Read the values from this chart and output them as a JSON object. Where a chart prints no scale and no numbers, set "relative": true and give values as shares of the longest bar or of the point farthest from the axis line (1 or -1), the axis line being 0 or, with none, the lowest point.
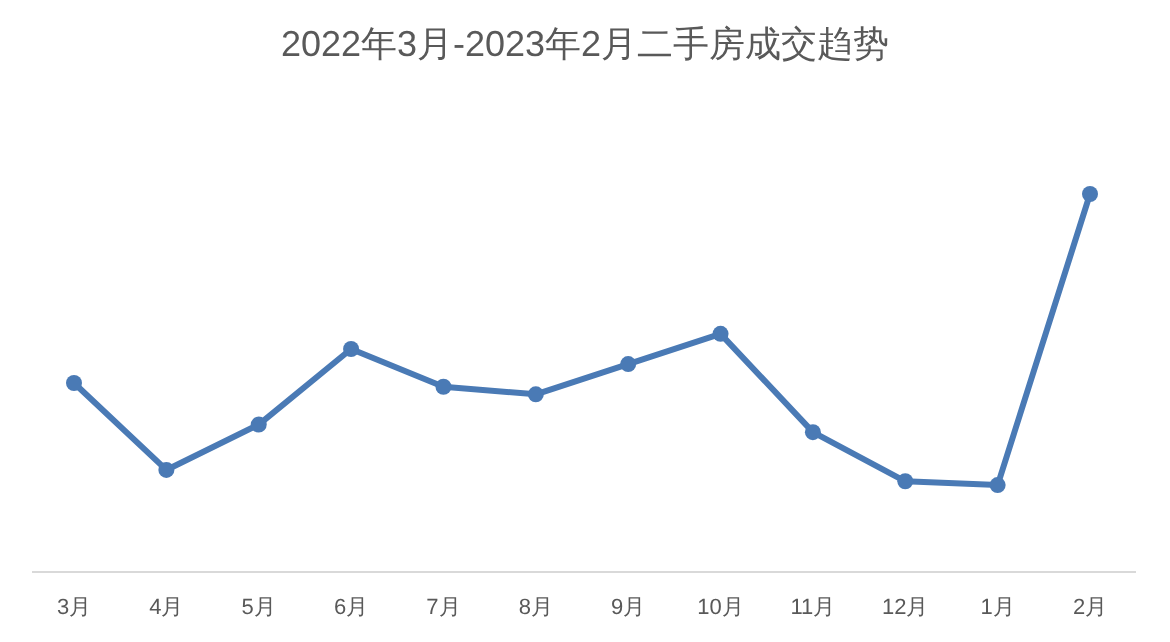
{
  "chart_data": {
    "type": "line",
    "title": "2022年3月-2023年2月二手房成交趋势",
    "relative": true,
    "categories": [
      "3月",
      "4月",
      "5月",
      "6月",
      "7月",
      "8月",
      "9月",
      "10月",
      "11月",
      "12月",
      "1月",
      "2月"
    ],
    "series": [
      {
        "color": "#4a7ab5",
        "values": [
          0.5,
          0.27,
          0.39,
          0.59,
          0.49,
          0.47,
          0.55,
          0.63,
          0.37,
          0.24,
          0.23,
          1
        ]
      }
    ],
    "marker": "circle",
    "line_style": "solid"
  }
}
